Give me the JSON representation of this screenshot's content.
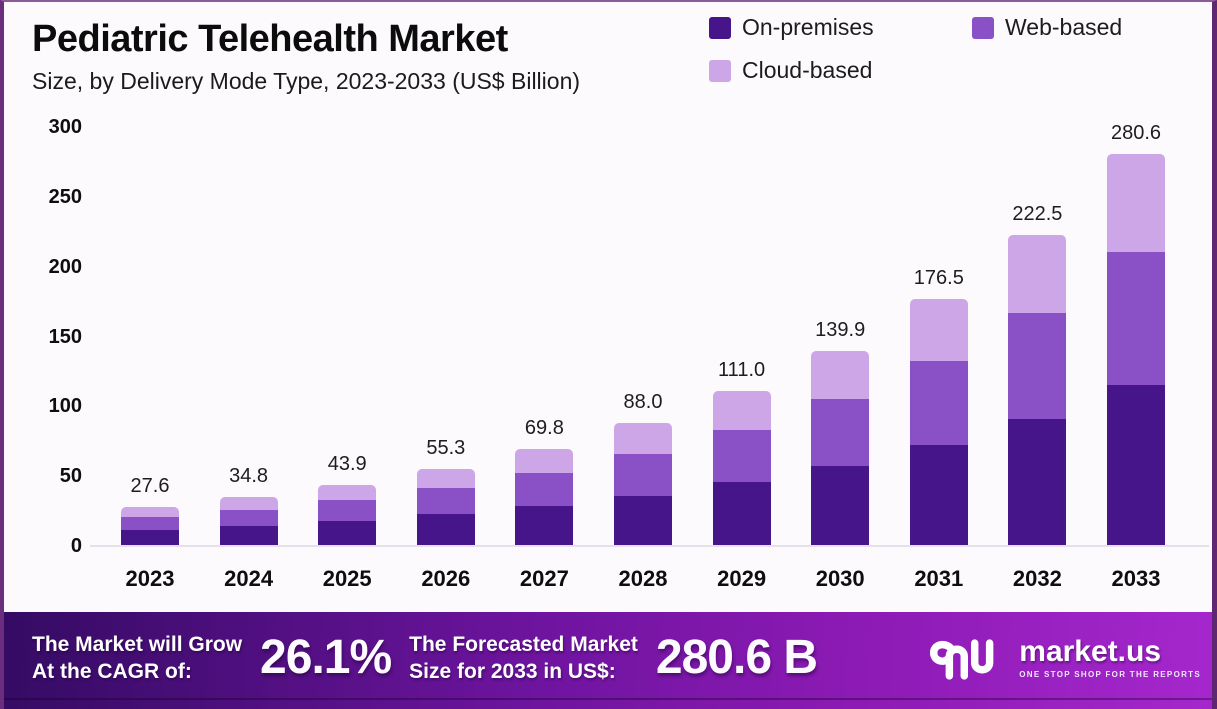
{
  "header": {
    "title": "Pediatric Telehealth Market",
    "subtitle": "Size, by Delivery Mode Type, 2023-2033 (US$ Billion)"
  },
  "legend": [
    {
      "label": "On-premises",
      "color": "#46158a"
    },
    {
      "label": "Web-based",
      "color": "#8a50c6"
    },
    {
      "label": "Cloud-based",
      "color": "#cda6e8"
    }
  ],
  "chart_data": {
    "type": "bar",
    "stacked": true,
    "title": "Pediatric Telehealth Market Size, by Delivery Mode Type, 2023-2033 (US$ Billion)",
    "xlabel": "",
    "ylabel": "US$ Billion",
    "ylim": [
      0,
      300
    ],
    "yticks": [
      0,
      50,
      100,
      150,
      200,
      250,
      300
    ],
    "grid": false,
    "legend_position": "top-right",
    "categories": [
      "2023",
      "2024",
      "2025",
      "2026",
      "2027",
      "2028",
      "2029",
      "2030",
      "2031",
      "2032",
      "2033"
    ],
    "series": [
      {
        "name": "On-premises",
        "color": "#46158a",
        "values": [
          11.3,
          14.3,
          18.0,
          22.7,
          28.6,
          36.1,
          45.5,
          57.4,
          72.4,
          91.2,
          115.0
        ]
      },
      {
        "name": "Web-based",
        "color": "#8a50c6",
        "values": [
          9.4,
          11.8,
          14.9,
          18.8,
          23.7,
          29.9,
          37.7,
          47.6,
          60.0,
          75.7,
          95.4
        ]
      },
      {
        "name": "Cloud-based",
        "color": "#cda6e8",
        "values": [
          6.9,
          8.7,
          11.0,
          13.8,
          17.5,
          22.0,
          27.8,
          34.9,
          44.1,
          55.6,
          70.2
        ]
      }
    ],
    "totals": [
      27.6,
      34.8,
      43.9,
      55.3,
      69.8,
      88.0,
      111.0,
      139.9,
      176.5,
      222.5,
      280.6
    ],
    "total_labels": [
      "27.6",
      "34.8",
      "43.9",
      "55.3",
      "69.8",
      "88.0",
      "111.0",
      "139.9",
      "176.5",
      "222.5",
      "280.6"
    ]
  },
  "banner": {
    "cagr_label_line1": "The Market will Grow",
    "cagr_label_line2": "At the CAGR of:",
    "cagr_value": "26.1%",
    "forecast_label_line1": "The Forecasted Market",
    "forecast_label_line2": "Size for 2033 in US$:",
    "forecast_value": "280.6 B",
    "brand": "market.us",
    "brand_tagline": "ONE STOP SHOP FOR THE REPORTS"
  },
  "colors": {
    "frame_border": "#6b2d7d",
    "banner_gradient_start": "#340b63",
    "banner_gradient_end": "#a527cd",
    "baseline": "#e5e1ea",
    "text": "#0e0e0e"
  }
}
